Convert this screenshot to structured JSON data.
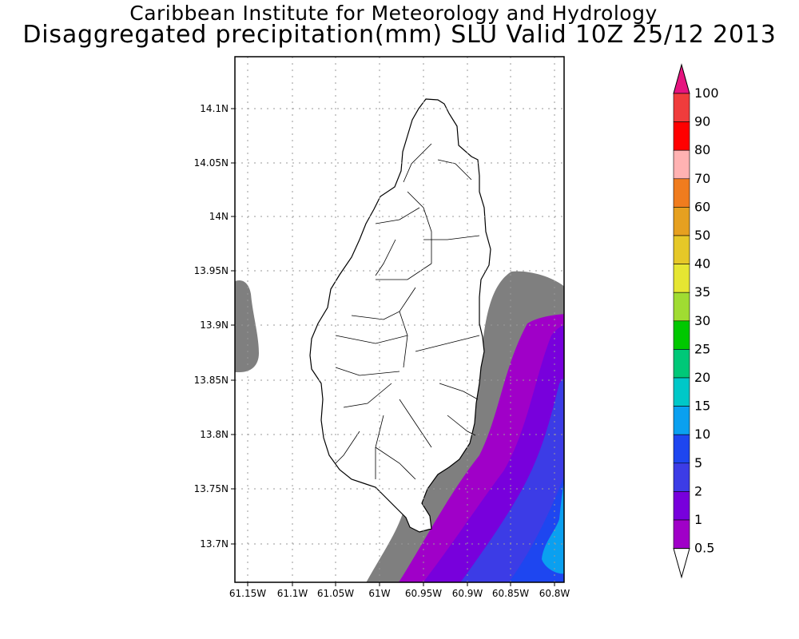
{
  "titles": {
    "line1": "Caribbean Institute for Meteorology and Hydrology",
    "line2": "Disaggregated precipitation(mm) SLU Valid 10Z 25/12 2013"
  },
  "map": {
    "lat_ticks": [
      "14.1N",
      "14.05N",
      "14N",
      "13.95N",
      "13.9N",
      "13.85N",
      "13.8N",
      "13.75N",
      "13.7N"
    ],
    "lon_ticks": [
      "61.15W",
      "61.1W",
      "61.05W",
      "61W",
      "60.95W",
      "60.9W",
      "60.85W",
      "60.8W"
    ],
    "grid": "dotted",
    "background": "#ffffff",
    "land_fill": "#ffffff"
  },
  "colorbar": {
    "labels": [
      "100",
      "90",
      "80",
      "70",
      "60",
      "50",
      "40",
      "35",
      "30",
      "25",
      "20",
      "15",
      "10",
      "5",
      "2",
      "1",
      "0.5"
    ],
    "colors": [
      "#f03c3c",
      "#ff0000",
      "#ffb2b2",
      "#f07c1e",
      "#e6a020",
      "#e6c828",
      "#e6e632",
      "#a0dc32",
      "#00c800",
      "#00c878",
      "#00c8c8",
      "#0aa0f0",
      "#1e46f0",
      "#3c3ce6",
      "#7800dc",
      "#a000c8",
      "#7f7f7f"
    ],
    "top_arrow_color": "#e6147f",
    "bottom_arrow_color": "#ffffff"
  }
}
